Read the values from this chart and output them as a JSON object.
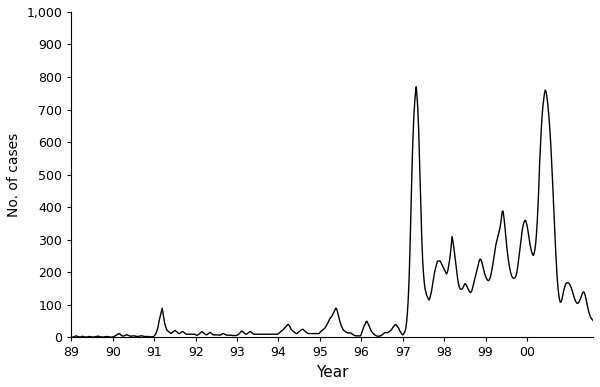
{
  "xlabel": "Year",
  "ylabel": "No. of cases",
  "background_color": "#ffffff",
  "line_color": "#000000",
  "line_width": 1.0,
  "ylim": [
    0,
    1000
  ],
  "yticks": [
    0,
    100,
    200,
    300,
    400,
    500,
    600,
    700,
    800,
    900,
    1000
  ],
  "ytick_labels": [
    "0",
    "100",
    "200",
    "300",
    "400",
    "500",
    "600",
    "700",
    "800",
    "900",
    "1,000"
  ],
  "n_weeks_per_year": 52,
  "year_labels": [
    "89",
    "90",
    "91",
    "92",
    "93",
    "94",
    "95",
    "96",
    "97",
    "98",
    "99",
    "00"
  ],
  "values": [
    2,
    1,
    1,
    2,
    3,
    4,
    5,
    4,
    3,
    2,
    2,
    1,
    2,
    3,
    4,
    3,
    2,
    2,
    1,
    1,
    2,
    2,
    3,
    3,
    2,
    2,
    2,
    1,
    1,
    2,
    2,
    3,
    3,
    4,
    4,
    3,
    2,
    2,
    2,
    1,
    1,
    2,
    2,
    2,
    3,
    3,
    2,
    2,
    2,
    1,
    1,
    1,
    2,
    3,
    4,
    5,
    6,
    8,
    10,
    11,
    12,
    10,
    8,
    6,
    5,
    4,
    5,
    6,
    7,
    8,
    8,
    7,
    6,
    5,
    4,
    4,
    4,
    5,
    5,
    5,
    4,
    4,
    3,
    3,
    3,
    4,
    4,
    5,
    5,
    5,
    4,
    3,
    3,
    3,
    3,
    3,
    3,
    3,
    2,
    2,
    2,
    2,
    2,
    2,
    5,
    8,
    12,
    18,
    25,
    35,
    50,
    60,
    70,
    80,
    90,
    75,
    60,
    45,
    35,
    28,
    22,
    20,
    18,
    16,
    14,
    12,
    14,
    16,
    18,
    20,
    22,
    20,
    18,
    16,
    14,
    12,
    12,
    14,
    16,
    18,
    18,
    16,
    14,
    12,
    10,
    10,
    10,
    10,
    10,
    10,
    10,
    10,
    10,
    10,
    10,
    10,
    8,
    7,
    7,
    8,
    10,
    12,
    14,
    16,
    18,
    16,
    14,
    12,
    10,
    9,
    8,
    10,
    12,
    14,
    16,
    14,
    12,
    10,
    8,
    8,
    8,
    8,
    8,
    8,
    8,
    7,
    7,
    8,
    8,
    10,
    12,
    12,
    10,
    10,
    8,
    7,
    7,
    7,
    7,
    7,
    7,
    7,
    6,
    6,
    6,
    6,
    6,
    6,
    7,
    8,
    10,
    12,
    15,
    18,
    20,
    18,
    16,
    14,
    12,
    10,
    10,
    12,
    14,
    16,
    18,
    18,
    16,
    14,
    12,
    10,
    10,
    10,
    10,
    10,
    10,
    10,
    10,
    10,
    10,
    10,
    10,
    10,
    10,
    10,
    10,
    10,
    10,
    10,
    10,
    10,
    10,
    10,
    10,
    10,
    10,
    10,
    10,
    10,
    10,
    10,
    12,
    14,
    16,
    18,
    20,
    22,
    24,
    28,
    30,
    32,
    35,
    38,
    40,
    38,
    35,
    30,
    25,
    22,
    20,
    18,
    16,
    14,
    12,
    12,
    14,
    16,
    18,
    20,
    22,
    24,
    25,
    25,
    22,
    20,
    18,
    16,
    14,
    12,
    12,
    12,
    12,
    12,
    12,
    12,
    12,
    12,
    12,
    12,
    12,
    12,
    12,
    12,
    15,
    18,
    20,
    22,
    24,
    26,
    28,
    32,
    36,
    40,
    45,
    50,
    55,
    60,
    62,
    65,
    70,
    75,
    80,
    85,
    90,
    88,
    80,
    70,
    60,
    50,
    42,
    35,
    30,
    25,
    22,
    20,
    18,
    16,
    15,
    14,
    14,
    14,
    14,
    14,
    12,
    10,
    8,
    7,
    6,
    5,
    5,
    5,
    5,
    5,
    5,
    5,
    10,
    18,
    25,
    32,
    38,
    42,
    48,
    50,
    45,
    40,
    35,
    28,
    22,
    18,
    15,
    12,
    10,
    8,
    6,
    5,
    4,
    4,
    4,
    4,
    5,
    6,
    8,
    10,
    12,
    14,
    15,
    15,
    15,
    15,
    16,
    18,
    20,
    22,
    24,
    28,
    32,
    35,
    38,
    40,
    38,
    35,
    32,
    28,
    22,
    18,
    14,
    10,
    8,
    10,
    15,
    20,
    30,
    50,
    80,
    120,
    180,
    260,
    360,
    460,
    550,
    620,
    680,
    720,
    750,
    770,
    740,
    700,
    640,
    560,
    470,
    380,
    300,
    240,
    200,
    170,
    150,
    140,
    130,
    125,
    120,
    115,
    120,
    130,
    140,
    155,
    170,
    185,
    200,
    210,
    220,
    230,
    235,
    235,
    235,
    235,
    230,
    225,
    220,
    215,
    210,
    205,
    200,
    195,
    200,
    210,
    225,
    240,
    260,
    285,
    310,
    295,
    280,
    260,
    240,
    220,
    200,
    180,
    165,
    155,
    150,
    148,
    148,
    150,
    155,
    160,
    165,
    165,
    160,
    155,
    150,
    145,
    140,
    138,
    140,
    145,
    155,
    165,
    175,
    185,
    195,
    205,
    215,
    225,
    235,
    240,
    240,
    235,
    225,
    215,
    205,
    195,
    188,
    182,
    178,
    175,
    175,
    178,
    185,
    195,
    208,
    222,
    238,
    255,
    270,
    285,
    295,
    305,
    315,
    325,
    335,
    350,
    368,
    388,
    388,
    370,
    348,
    322,
    296,
    270,
    250,
    232,
    218,
    205,
    195,
    188,
    184,
    182,
    182,
    184,
    188,
    196,
    210,
    228,
    248,
    268,
    290,
    310,
    328,
    342,
    352,
    358,
    360,
    355,
    345,
    332,
    316,
    300,
    284,
    272,
    262,
    256,
    252,
    258,
    270,
    290,
    320,
    360,
    410,
    470,
    540,
    590,
    640,
    680,
    710,
    730,
    750,
    760,
    755,
    740,
    720,
    695,
    665,
    630,
    588,
    540,
    488,
    432,
    375,
    320,
    268,
    222,
    182,
    152,
    130,
    115,
    108,
    110,
    118,
    130,
    142,
    152,
    160,
    165,
    168,
    168,
    168,
    166,
    162,
    156,
    150,
    142,
    134,
    126,
    118,
    112,
    108,
    105,
    105,
    108,
    112,
    118,
    125,
    132,
    138,
    140,
    138,
    130,
    120,
    108,
    96,
    85,
    75,
    68,
    62,
    58,
    55,
    52
  ]
}
